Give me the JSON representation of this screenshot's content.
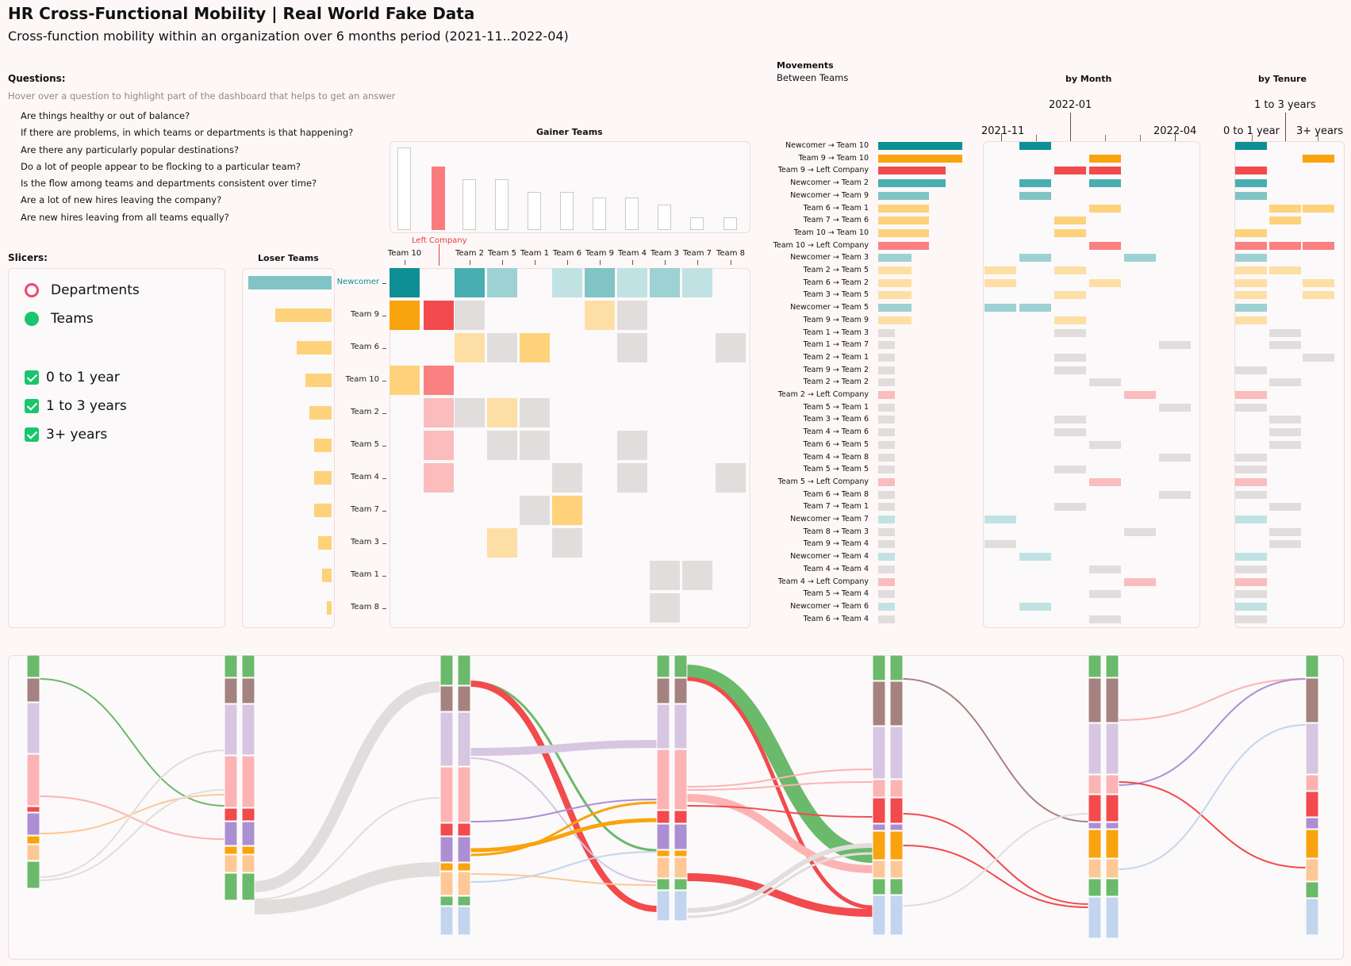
{
  "header": {
    "title": "HR Cross-Functional Mobility | Real World Fake Data",
    "subtitle": "Cross-function mobility within an organization over 6 months period (2021-11..2022-04)"
  },
  "questions": {
    "heading": "Questions:",
    "hint": "Hover over a question to highlight part of the dashboard that helps to get an answer",
    "items": [
      "Are things healthy or out of balance?",
      "If there are problems, in which teams or departments is that happening?",
      "Are there any particularly popular destinations?",
      "Do a lot of people appear to be flocking to a particular team?",
      "Is the flow among teams and departments consistent over time?",
      "Are a lot of new hires leaving the company?",
      "Are new hires leaving from all teams equally?"
    ]
  },
  "slicers": {
    "heading": "Slicers:",
    "options": [
      "Departments",
      "Teams"
    ],
    "tenure": [
      "0 to 1 year",
      "1 to 3 years",
      "3+ years"
    ]
  },
  "gainer": {
    "title": "Gainer Teams",
    "left_company_label": "Left Company",
    "columns": [
      "Team 10",
      "Team 2",
      "Team 5",
      "Team 1",
      "Team 6",
      "Team 9",
      "Team 4",
      "Team 3",
      "Team 7",
      "Team 8"
    ],
    "values": [
      97,
      75,
      60,
      60,
      45,
      45,
      38,
      38,
      30,
      15,
      15
    ]
  },
  "loser": {
    "title": "Loser Teams",
    "rows": [
      "Newcomer",
      "Team 9",
      "Team 6",
      "Team 10",
      "Team 2",
      "Team 5",
      "Team 4",
      "Team 7",
      "Team 3",
      "Team 1",
      "Team 8"
    ],
    "values": [
      100,
      68,
      42,
      31,
      27,
      21,
      21,
      21,
      16,
      11,
      6
    ]
  },
  "movements": {
    "title": "Movements",
    "subtitle": "Between Teams",
    "month_title": "by Month",
    "tenure_title": "by Tenure",
    "month_ticks": [
      "2021-11",
      "2022-01",
      "2022-04"
    ],
    "tenure_ticks": [
      "0 to 1 year",
      "1 to 3 years",
      "3+ years"
    ],
    "rows": [
      {
        "label": "Newcomer → Team 10",
        "value": 100,
        "color": "#0e8f93"
      },
      {
        "label": "Team 9 → Team 10",
        "value": 100,
        "color": "#f9a30e"
      },
      {
        "label": "Team 9 → Left Company",
        "value": 80,
        "color": "#f24a4d"
      },
      {
        "label": "Newcomer → Team 2",
        "value": 80,
        "color": "#48aeb1"
      },
      {
        "label": "Newcomer → Team 9",
        "value": 60,
        "color": "#80c4c6"
      },
      {
        "label": "Team 6 → Team 1",
        "value": 60,
        "color": "#fdd27b"
      },
      {
        "label": "Team 7 → Team 6",
        "value": 60,
        "color": "#fdd27b"
      },
      {
        "label": "Team 10 → Team 10",
        "value": 60,
        "color": "#fdd27b"
      },
      {
        "label": "Team 10 → Left Company",
        "value": 60,
        "color": "#fa8082"
      },
      {
        "label": "Newcomer → Team 3",
        "value": 40,
        "color": "#9ed1d3"
      },
      {
        "label": "Team 2 → Team 5",
        "value": 40,
        "color": "#fddfa6"
      },
      {
        "label": "Team 6 → Team 2",
        "value": 40,
        "color": "#fddfa6"
      },
      {
        "label": "Team 3 → Team 5",
        "value": 40,
        "color": "#fddfa6"
      },
      {
        "label": "Newcomer → Team 5",
        "value": 40,
        "color": "#9ed1d3"
      },
      {
        "label": "Team 9 → Team 9",
        "value": 40,
        "color": "#fddfa6"
      },
      {
        "label": "Team 1 → Team 3",
        "value": 20,
        "color": "#e2dddd"
      },
      {
        "label": "Team 1 → Team 7",
        "value": 20,
        "color": "#e2dddd"
      },
      {
        "label": "Team 2 → Team 1",
        "value": 20,
        "color": "#e2dddd"
      },
      {
        "label": "Team 9 → Team 2",
        "value": 20,
        "color": "#e2dddd"
      },
      {
        "label": "Team 2 → Team 2",
        "value": 20,
        "color": "#e2dddd"
      },
      {
        "label": "Team 2 → Left Company",
        "value": 20,
        "color": "#fbbcbd"
      },
      {
        "label": "Team 5 → Team 1",
        "value": 20,
        "color": "#e2dddd"
      },
      {
        "label": "Team 3 → Team 6",
        "value": 20,
        "color": "#e2dddd"
      },
      {
        "label": "Team 4 → Team 6",
        "value": 20,
        "color": "#e2dddd"
      },
      {
        "label": "Team 6 → Team 5",
        "value": 20,
        "color": "#e2dddd"
      },
      {
        "label": "Team 4 → Team 8",
        "value": 20,
        "color": "#e2dddd"
      },
      {
        "label": "Team 5 → Team 5",
        "value": 20,
        "color": "#e2dddd"
      },
      {
        "label": "Team 5 → Left Company",
        "value": 20,
        "color": "#fbbcbd"
      },
      {
        "label": "Team 6 → Team 8",
        "value": 20,
        "color": "#e2dddd"
      },
      {
        "label": "Team 7 → Team 1",
        "value": 20,
        "color": "#e2dddd"
      },
      {
        "label": "Newcomer → Team 7",
        "value": 20,
        "color": "#c1e2e3"
      },
      {
        "label": "Team 8 → Team 3",
        "value": 20,
        "color": "#e2dddd"
      },
      {
        "label": "Team 9 → Team 4",
        "value": 20,
        "color": "#e2dddd"
      },
      {
        "label": "Newcomer → Team 4",
        "value": 20,
        "color": "#c1e2e3"
      },
      {
        "label": "Team 4 → Team 4",
        "value": 20,
        "color": "#e2dddd"
      },
      {
        "label": "Team 4 → Left Company",
        "value": 20,
        "color": "#fbbcbd"
      },
      {
        "label": "Team 5 → Team 4",
        "value": 20,
        "color": "#e2dddd"
      },
      {
        "label": "Newcomer → Team 6",
        "value": 20,
        "color": "#c1e2e3"
      },
      {
        "label": "Team 6 → Team 4",
        "value": 20,
        "color": "#e2dddd"
      }
    ]
  },
  "colors": {
    "teal": "#0e8f93",
    "orange": "#f9a30e",
    "red": "#f24a4d",
    "grey": "#e2dddd",
    "green": "#6bb96b",
    "brown": "#a58280",
    "lavender": "#d7c6e2",
    "pink": "#fcb3b4",
    "purple": "#ac8fd2",
    "peach": "#fdc896",
    "blue": "#c3d5ee"
  }
}
